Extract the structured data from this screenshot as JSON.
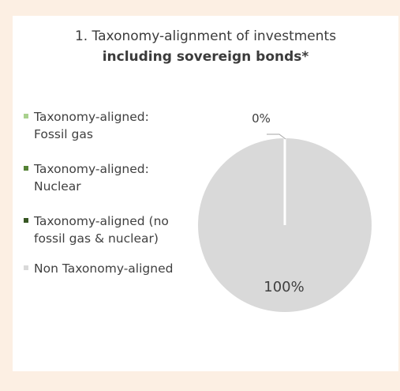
{
  "chart_data": {
    "type": "pie",
    "title": "1. Taxonomy-alignment of investments",
    "subtitle": "including sovereign bonds*",
    "legend_placement": "left",
    "slices": [
      {
        "label": "Taxonomy-aligned:\nFossil gas",
        "value": 0,
        "color": "#a9d18e"
      },
      {
        "label": "Taxonomy-aligned:\nNuclear",
        "value": 0,
        "color": "#548235"
      },
      {
        "label": "Taxonomy-aligned (no\nfossil gas & nuclear)",
        "value": 0,
        "color": "#375623"
      },
      {
        "label": "Non Taxonomy-aligned",
        "value": 100,
        "color": "#d9d9d9"
      }
    ],
    "data_labels": [
      "0%",
      "100%"
    ]
  }
}
